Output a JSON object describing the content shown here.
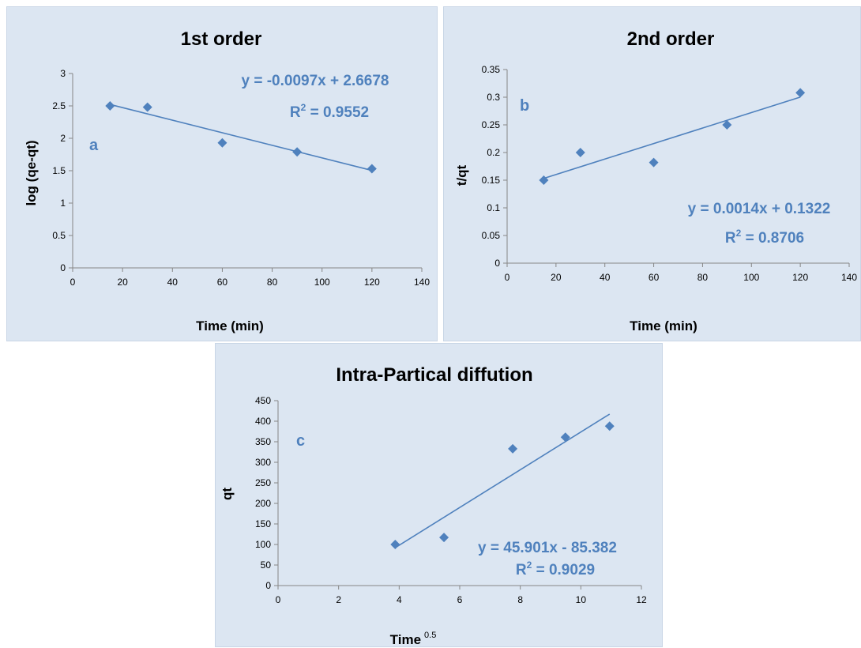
{
  "chart_data": [
    {
      "type": "scatter",
      "panel_letter": "a",
      "title": "1st order",
      "xlabel": "Time (min)",
      "ylabel": "log (qe-qt)",
      "xlim": [
        0,
        140
      ],
      "ylim": [
        0,
        3
      ],
      "xticks": [
        "0",
        "20",
        "40",
        "60",
        "80",
        "100",
        "120",
        "140"
      ],
      "yticks": [
        "0",
        "0.5",
        "1",
        "1.5",
        "2",
        "2.5",
        "3"
      ],
      "xtick_values": [
        0,
        20,
        40,
        60,
        80,
        100,
        120,
        140
      ],
      "ytick_values": [
        0,
        0.5,
        1,
        1.5,
        2,
        2.5,
        3
      ],
      "points": {
        "x": [
          15,
          30,
          60,
          90,
          120
        ],
        "y": [
          2.5,
          2.48,
          1.93,
          1.79,
          1.53
        ]
      },
      "trendline": {
        "slope": -0.0097,
        "intercept": 2.6678,
        "x_range": [
          15,
          120
        ]
      },
      "equation": "y = -0.0097x + 2.6678",
      "r2_label": "R",
      "r2_sup": "2",
      "r2_value": " = 0.9552",
      "grid": false,
      "marker_color": "#4f81bd"
    },
    {
      "type": "scatter",
      "panel_letter": "b",
      "title": "2nd order",
      "xlabel": "Time (min)",
      "ylabel": "t/qt",
      "xlim": [
        0,
        140
      ],
      "ylim": [
        0,
        0.35
      ],
      "xticks": [
        "0",
        "20",
        "40",
        "60",
        "80",
        "100",
        "120",
        "140"
      ],
      "yticks": [
        "0",
        "0.05",
        "0.1",
        "0.15",
        "0.2",
        "0.25",
        "0.3",
        "0.35"
      ],
      "xtick_values": [
        0,
        20,
        40,
        60,
        80,
        100,
        120,
        140
      ],
      "ytick_values": [
        0,
        0.05,
        0.1,
        0.15,
        0.2,
        0.25,
        0.3,
        0.35
      ],
      "points": {
        "x": [
          15,
          30,
          60,
          90,
          120
        ],
        "y": [
          0.15,
          0.2,
          0.182,
          0.25,
          0.308
        ]
      },
      "trendline": {
        "slope": 0.0014,
        "intercept": 0.1322,
        "x_range": [
          15,
          120
        ]
      },
      "equation": "y = 0.0014x + 0.1322",
      "r2_label": "R",
      "r2_sup": "2",
      "r2_value": " = 0.8706",
      "grid": false,
      "marker_color": "#4f81bd"
    },
    {
      "type": "scatter",
      "panel_letter": "c",
      "title": "Intra-Partical diffution",
      "xlabel": "Time",
      "xlabel_sup": "0.5",
      "ylabel": "qt",
      "xlim": [
        0,
        12
      ],
      "ylim": [
        0,
        450
      ],
      "xticks": [
        "0",
        "2",
        "4",
        "6",
        "8",
        "10",
        "12"
      ],
      "yticks": [
        "0",
        "50",
        "100",
        "150",
        "200",
        "250",
        "300",
        "350",
        "400",
        "450"
      ],
      "xtick_values": [
        0,
        2,
        4,
        6,
        8,
        10,
        12
      ],
      "ytick_values": [
        0,
        50,
        100,
        150,
        200,
        250,
        300,
        350,
        400,
        450
      ],
      "points": {
        "x": [
          3.87,
          5.48,
          7.75,
          9.49,
          10.95
        ],
        "y": [
          100,
          117,
          333,
          361,
          388
        ]
      },
      "trendline": {
        "slope": 45.901,
        "intercept": -85.382,
        "x_range": [
          3.87,
          10.95
        ]
      },
      "equation": "y = 45.901x - 85.382",
      "r2_label": "R",
      "r2_sup": "2",
      "r2_value": " = 0.9029",
      "grid": false,
      "marker_color": "#4f81bd"
    }
  ]
}
